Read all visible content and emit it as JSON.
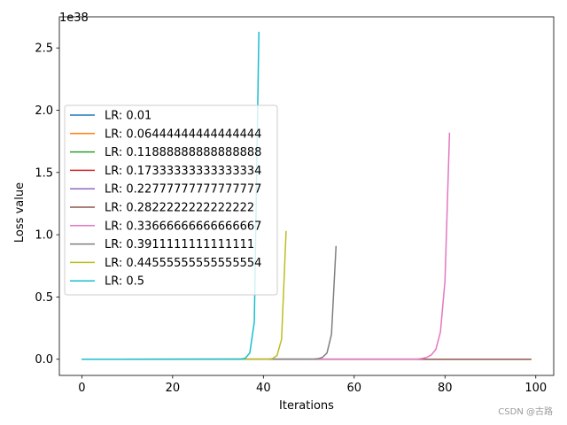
{
  "watermark": "CSDN @古路",
  "chart_data": {
    "type": "line",
    "xlabel": "Iterations",
    "ylabel": "Loss value",
    "y_offset_label": "1e38",
    "xlim": [
      -4.95,
      103.95
    ],
    "ylim": [
      -0.13,
      2.75
    ],
    "y_unit_multiplier": "1e38",
    "xticks": [
      0,
      20,
      40,
      60,
      80,
      100
    ],
    "xtick_labels": [
      "0",
      "20",
      "40",
      "60",
      "80",
      "100"
    ],
    "yticks": [
      0.0,
      0.5,
      1.0,
      1.5,
      2.0,
      2.5
    ],
    "ytick_labels": [
      "0.0",
      "0.5",
      "1.0",
      "1.5",
      "2.0",
      "2.5"
    ],
    "grid": false,
    "legend_position": "center-left",
    "series": [
      {
        "name": "LR: 0.01",
        "color": "#1f77b4",
        "x": [
          0,
          99
        ],
        "y": [
          0,
          0
        ]
      },
      {
        "name": "LR: 0.06444444444444444",
        "color": "#ff7f0e",
        "x": [
          0,
          99
        ],
        "y": [
          0,
          0
        ]
      },
      {
        "name": "LR: 0.11888888888888888",
        "color": "#2ca02c",
        "x": [
          0,
          99
        ],
        "y": [
          0,
          0
        ]
      },
      {
        "name": "LR: 0.17333333333333334",
        "color": "#d62728",
        "x": [
          0,
          99
        ],
        "y": [
          0,
          0
        ]
      },
      {
        "name": "LR: 0.22777777777777777",
        "color": "#9467bd",
        "x": [
          0,
          99
        ],
        "y": [
          0,
          0
        ]
      },
      {
        "name": "LR: 0.2822222222222222",
        "color": "#8c564b",
        "x": [
          0,
          99
        ],
        "y": [
          0,
          0
        ]
      },
      {
        "name": "LR: 0.33666666666666667",
        "color": "#e377c2",
        "x": [
          0,
          74,
          75,
          76,
          77,
          78,
          79,
          80,
          81
        ],
        "y": [
          0,
          0.002,
          0.006,
          0.015,
          0.035,
          0.08,
          0.22,
          0.63,
          1.82
        ]
      },
      {
        "name": "LR: 0.3911111111111111",
        "color": "#7f7f7f",
        "x": [
          0,
          51,
          52,
          53,
          54,
          55,
          56
        ],
        "y": [
          0,
          0.001,
          0.004,
          0.015,
          0.05,
          0.2,
          0.91
        ]
      },
      {
        "name": "LR: 0.44555555555555554",
        "color": "#bcbd22",
        "x": [
          0,
          41,
          42,
          43,
          44,
          45
        ],
        "y": [
          0,
          0.001,
          0.005,
          0.03,
          0.16,
          1.03
        ]
      },
      {
        "name": "LR: 0.5",
        "color": "#17becf",
        "x": [
          0,
          35,
          36,
          37,
          38,
          39
        ],
        "y": [
          0,
          0.001,
          0.008,
          0.05,
          0.3,
          2.63
        ]
      }
    ]
  }
}
